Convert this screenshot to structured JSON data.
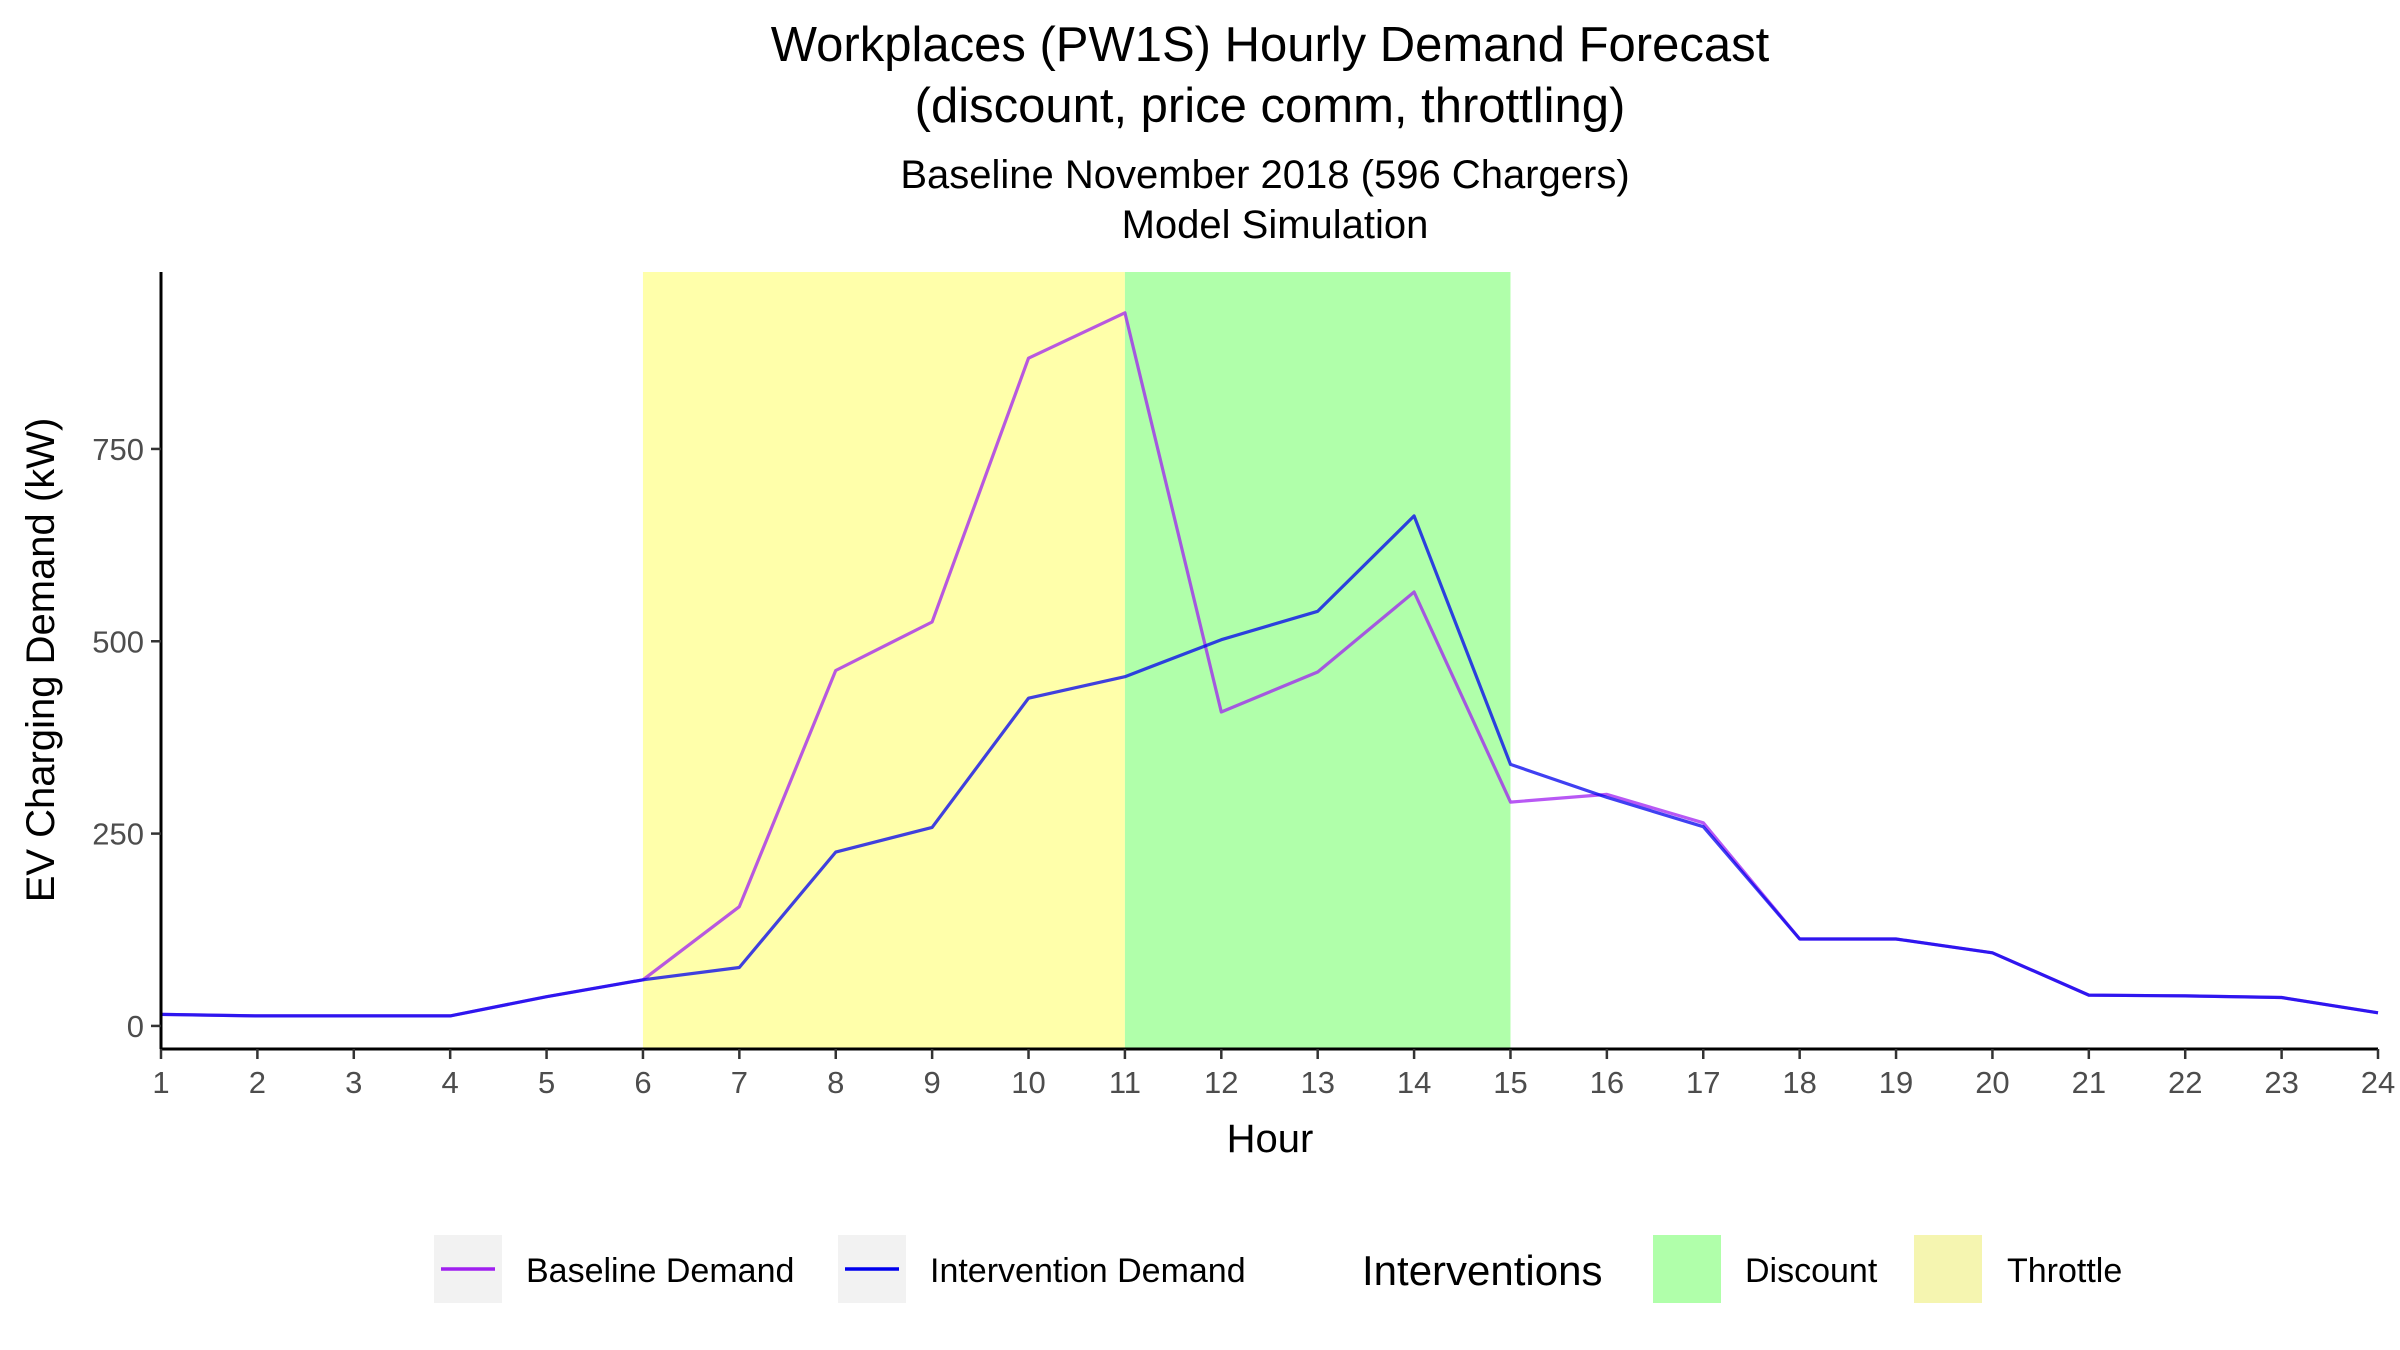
{
  "chart_data": {
    "type": "line",
    "title_line1": "Workplaces (PW1S) Hourly Demand Forecast",
    "title_line2": "(discount, price comm, throttling)",
    "subtitle_line1": "Baseline November 2018 (596 Chargers)",
    "subtitle_line2": "Model Simulation",
    "xlabel": "Hour",
    "ylabel": "EV Charging Demand (kW)",
    "x": [
      1,
      2,
      3,
      4,
      5,
      6,
      7,
      8,
      9,
      10,
      11,
      12,
      13,
      14,
      15,
      16,
      17,
      18,
      19,
      20,
      21,
      22,
      23,
      24
    ],
    "xlim": [
      1,
      24
    ],
    "ylim": [
      -30,
      980
    ],
    "yticks": [
      0,
      250,
      500,
      750
    ],
    "grid": false,
    "series": [
      {
        "name": "Baseline Demand",
        "color": "#a020f0",
        "values": [
          15,
          13,
          13,
          13,
          38,
          60,
          155,
          462,
          525,
          868,
          927,
          408,
          460,
          564,
          291,
          301,
          264,
          113,
          113,
          95,
          40,
          39,
          37,
          17
        ]
      },
      {
        "name": "Intervention Demand",
        "color": "#0000ee",
        "values": [
          15,
          13,
          13,
          13,
          38,
          60,
          76,
          226,
          258,
          426,
          454,
          502,
          539,
          663,
          340,
          297,
          259,
          113,
          113,
          95,
          40,
          39,
          37,
          17
        ]
      }
    ],
    "regions": [
      {
        "name": "Throttle",
        "x_start": 6,
        "x_end": 11,
        "color": "#ffffaa"
      },
      {
        "name": "Discount",
        "x_start": 11,
        "x_end": 15,
        "color": "#b0ffaa"
      }
    ],
    "legend": {
      "position": "bottom",
      "fill_title": "Interventions",
      "fill_items": [
        {
          "name": "Discount",
          "color": "#b0ffaa"
        },
        {
          "name": "Throttle",
          "color": "#f5f5b0"
        }
      ]
    }
  }
}
